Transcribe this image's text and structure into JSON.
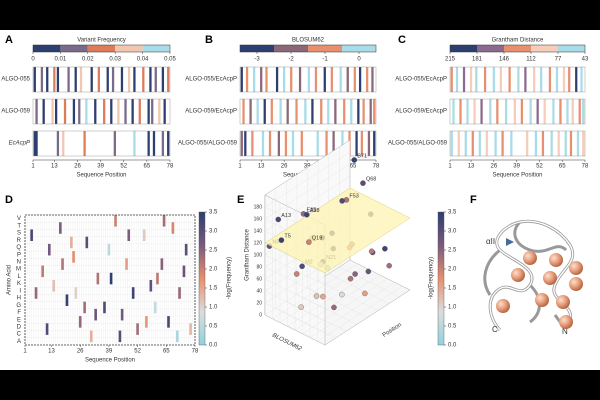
{
  "stripe_panels": [
    {
      "label": "A",
      "colorbar_title": "Variant Frequency",
      "colors": [
        "#2d3e70",
        "#7a6a8a",
        "#e07b5a",
        "#f2c7b0",
        "#a8dce8"
      ],
      "ticks": [
        0,
        0.01,
        0.02,
        0.03,
        0.04,
        0.05
      ],
      "x_label": "Sequence Position",
      "xlim": [
        1,
        78
      ],
      "xticks": [
        1,
        13,
        26,
        39,
        52,
        65,
        78
      ],
      "rows": [
        {
          "name": "ALGO-055",
          "stripes": [
            [
              2,
              0
            ],
            [
              6,
              1
            ],
            [
              9,
              0
            ],
            [
              13,
              2
            ],
            [
              15,
              0
            ],
            [
              21,
              1
            ],
            [
              25,
              0
            ],
            [
              28,
              3
            ],
            [
              34,
              0
            ],
            [
              38,
              2
            ],
            [
              43,
              0
            ],
            [
              46,
              1
            ],
            [
              51,
              0
            ],
            [
              55,
              3
            ],
            [
              58,
              0
            ],
            [
              63,
              2
            ],
            [
              67,
              0
            ],
            [
              70,
              1
            ],
            [
              74,
              0
            ],
            [
              77,
              2
            ]
          ]
        },
        {
          "name": "ALGO-059",
          "stripes": [
            [
              3,
              1
            ],
            [
              7,
              0
            ],
            [
              12,
              3
            ],
            [
              14,
              0
            ],
            [
              19,
              2
            ],
            [
              24,
              0
            ],
            [
              27,
              1
            ],
            [
              31,
              4
            ],
            [
              36,
              0
            ],
            [
              41,
              2
            ],
            [
              45,
              0
            ],
            [
              49,
              3
            ],
            [
              53,
              1
            ],
            [
              57,
              0
            ],
            [
              61,
              2
            ],
            [
              66,
              0
            ],
            [
              68,
              1
            ],
            [
              72,
              3
            ],
            [
              75,
              0
            ]
          ]
        },
        {
          "name": "EcAcpP",
          "stripes": [
            [
              2,
              0
            ],
            [
              3,
              0
            ],
            [
              15,
              1
            ],
            [
              18,
              3
            ],
            [
              30,
              2
            ],
            [
              47,
              1
            ],
            [
              58,
              4
            ],
            [
              66,
              0
            ],
            [
              69,
              0
            ],
            [
              74,
              1
            ],
            [
              77,
              0
            ]
          ]
        }
      ]
    },
    {
      "label": "B",
      "colorbar_title": "BLOSUM62",
      "colors": [
        "#2d3e70",
        "#8a6878",
        "#e8906e",
        "#a8dce8"
      ],
      "ticks": [
        -3,
        -2,
        -1,
        0
      ],
      "x_label": "Sequence Position",
      "xlim": [
        1,
        78
      ],
      "xticks": [
        1,
        13,
        26,
        39,
        52,
        65,
        78
      ],
      "rows": [
        {
          "name": "ALGO-055/EcAcpP",
          "stripes": [
            [
              2,
              0
            ],
            [
              5,
              2
            ],
            [
              9,
              3
            ],
            [
              13,
              1
            ],
            [
              16,
              2
            ],
            [
              22,
              0
            ],
            [
              26,
              3
            ],
            [
              30,
              2
            ],
            [
              35,
              1
            ],
            [
              40,
              3
            ],
            [
              44,
              2
            ],
            [
              49,
              0
            ],
            [
              53,
              2
            ],
            [
              58,
              3
            ],
            [
              62,
              1
            ],
            [
              66,
              2
            ],
            [
              69,
              0
            ],
            [
              73,
              2
            ],
            [
              76,
              1
            ]
          ]
        },
        {
          "name": "ALGO-059/EcAcpP",
          "stripes": [
            [
              3,
              2
            ],
            [
              7,
              1
            ],
            [
              11,
              3
            ],
            [
              15,
              0
            ],
            [
              19,
              2
            ],
            [
              24,
              3
            ],
            [
              28,
              1
            ],
            [
              33,
              2
            ],
            [
              38,
              3
            ],
            [
              42,
              0
            ],
            [
              47,
              2
            ],
            [
              51,
              3
            ],
            [
              55,
              1
            ],
            [
              60,
              2
            ],
            [
              64,
              3
            ],
            [
              68,
              0
            ],
            [
              71,
              2
            ],
            [
              75,
              1
            ],
            [
              77,
              2
            ]
          ]
        },
        {
          "name": "ALGO-055/ALGO-059",
          "stripes": [
            [
              2,
              1
            ],
            [
              4,
              0
            ],
            [
              8,
              2
            ],
            [
              14,
              3
            ],
            [
              18,
              2
            ],
            [
              23,
              1
            ],
            [
              27,
              2
            ],
            [
              31,
              3
            ],
            [
              36,
              2
            ],
            [
              45,
              3
            ],
            [
              50,
              2
            ],
            [
              54,
              1
            ],
            [
              59,
              3
            ],
            [
              63,
              2
            ],
            [
              67,
              0
            ],
            [
              70,
              2
            ],
            [
              74,
              1
            ],
            [
              77,
              0
            ]
          ]
        }
      ]
    },
    {
      "label": "C",
      "colorbar_title": "Grantham Distance",
      "colors": [
        "#2d3e70",
        "#8a6a8e",
        "#e8906e",
        "#f5cdb8",
        "#a8dce8"
      ],
      "ticks": [
        215,
        181,
        146,
        112,
        77,
        43
      ],
      "x_label": "Sequence Position",
      "xlim": [
        1,
        78
      ],
      "xticks": [
        1,
        13,
        26,
        39,
        52,
        65,
        78
      ],
      "rows": [
        {
          "name": "ALGO-055/EcAcpP",
          "stripes": [
            [
              2,
              2
            ],
            [
              5,
              4
            ],
            [
              9,
              1
            ],
            [
              13,
              3
            ],
            [
              16,
              4
            ],
            [
              21,
              2
            ],
            [
              26,
              4
            ],
            [
              30,
              3
            ],
            [
              35,
              2
            ],
            [
              40,
              4
            ],
            [
              44,
              1
            ],
            [
              49,
              3
            ],
            [
              53,
              4
            ],
            [
              58,
              2
            ],
            [
              62,
              4
            ],
            [
              66,
              3
            ],
            [
              69,
              2
            ],
            [
              73,
              0
            ],
            [
              76,
              4
            ]
          ]
        },
        {
          "name": "ALGO-059/EcAcpP",
          "stripes": [
            [
              3,
              4
            ],
            [
              7,
              2
            ],
            [
              11,
              4
            ],
            [
              15,
              3
            ],
            [
              19,
              1
            ],
            [
              24,
              4
            ],
            [
              28,
              2
            ],
            [
              33,
              4
            ],
            [
              38,
              3
            ],
            [
              42,
              2
            ],
            [
              47,
              4
            ],
            [
              51,
              1
            ],
            [
              55,
              3
            ],
            [
              60,
              4
            ],
            [
              64,
              2
            ],
            [
              68,
              4
            ],
            [
              71,
              3
            ],
            [
              75,
              2
            ],
            [
              77,
              4
            ]
          ]
        },
        {
          "name": "ALGO-055/ALGO-059",
          "stripes": [
            [
              2,
              4
            ],
            [
              6,
              3
            ],
            [
              10,
              4
            ],
            [
              14,
              2
            ],
            [
              18,
              4
            ],
            [
              22,
              3
            ],
            [
              27,
              4
            ],
            [
              31,
              2
            ],
            [
              36,
              4
            ],
            [
              45,
              3
            ],
            [
              50,
              4
            ],
            [
              54,
              2
            ],
            [
              59,
              4
            ],
            [
              63,
              3
            ],
            [
              67,
              4
            ],
            [
              70,
              2
            ],
            [
              74,
              4
            ],
            [
              77,
              3
            ]
          ]
        }
      ]
    }
  ],
  "heatmap": {
    "label": "D",
    "x_label": "Sequence Position",
    "y_label": "Amino Acid",
    "xlim": [
      1,
      78
    ],
    "xticks": [
      1,
      13,
      26,
      39,
      52,
      65,
      78
    ],
    "rows": [
      "V",
      "T",
      "S",
      "R",
      "Q",
      "P",
      "N",
      "M",
      "L",
      "K",
      "I",
      "H",
      "G",
      "F",
      "E",
      "D",
      "C",
      "A"
    ],
    "cells": [
      [
        4,
        2,
        3.2
      ],
      [
        9,
        7,
        2.1
      ],
      [
        14,
        9,
        1.2
      ],
      [
        17,
        1,
        2.6
      ],
      [
        20,
        11,
        3.4
      ],
      [
        23,
        5,
        1.8
      ],
      [
        26,
        14,
        2.4
      ],
      [
        29,
        3,
        3.0
      ],
      [
        31,
        16,
        1.4
      ],
      [
        34,
        8,
        2.2
      ],
      [
        37,
        12,
        3.1
      ],
      [
        39,
        4,
        0.5
      ],
      [
        42,
        0,
        2.0
      ],
      [
        45,
        13,
        2.7
      ],
      [
        47,
        6,
        1.6
      ],
      [
        50,
        10,
        3.3
      ],
      [
        52,
        15,
        2.3
      ],
      [
        55,
        2,
        1.1
      ],
      [
        58,
        9,
        2.9
      ],
      [
        60,
        12,
        0.6
      ],
      [
        63,
        6,
        2.5
      ],
      [
        66,
        14,
        3.2
      ],
      [
        68,
        1,
        1.9
      ],
      [
        71,
        10,
        2.4
      ],
      [
        74,
        4,
        3.0
      ],
      [
        76,
        15,
        1.3
      ],
      [
        6,
        10,
        2.4
      ],
      [
        11,
        15,
        3.1
      ],
      [
        18,
        6,
        2.2
      ],
      [
        24,
        10,
        1.0
      ],
      [
        33,
        13,
        2.8
      ],
      [
        40,
        8,
        3.5
      ],
      [
        48,
        2,
        2.6
      ],
      [
        56,
        14,
        1.7
      ],
      [
        64,
        0,
        2.3
      ],
      [
        70,
        16,
        0.3
      ],
      [
        12,
        4,
        2.7
      ],
      [
        28,
        12,
        2.3
      ],
      [
        44,
        16,
        3.0
      ],
      [
        61,
        8,
        2.1
      ],
      [
        73,
        7,
        2.8
      ],
      [
        22,
        3,
        1.4
      ]
    ],
    "colorbar_label": "-log(Frequency)",
    "colorbar_lim": [
      0,
      3.5
    ],
    "colorbar_ticks": [
      {
        "value": 0,
        "label": "0.0"
      },
      0.5,
      {
        "value": 1,
        "label": "1.0"
      },
      1.5,
      {
        "value": 2,
        "label": "2.0"
      },
      2.5,
      {
        "value": 3,
        "label": "3.0"
      },
      3.5
    ],
    "colors": [
      "#8fd3e0",
      "#dcdcdc",
      "#e8906e",
      "#7a5a7e",
      "#2d3e70"
    ]
  },
  "scatter3d": {
    "label": "E",
    "z_label": "Grantham Distance",
    "x_label": "Position",
    "y_label": "BLOSUM62",
    "xlim": [
      1,
      78
    ],
    "ylim": [
      -4,
      1
    ],
    "zlim": [
      0,
      200
    ],
    "zticks": [
      0,
      20,
      40,
      60,
      80,
      100,
      120,
      140,
      160,
      180
    ],
    "plane": 120,
    "points": [
      {
        "label": "B71",
        "x": 71,
        "y": -3,
        "z": 185,
        "v": 3.4
      },
      {
        "label": "E25",
        "x": 25,
        "y": -3,
        "z": 150,
        "v": 2.4
      },
      {
        "label": "F53",
        "x": 53,
        "y": -2,
        "z": 150,
        "v": 2.2
      },
      {
        "label": "Q68",
        "x": 68,
        "y": -2,
        "z": 160,
        "v": 3.0
      },
      {
        "label": "A13",
        "x": 13,
        "y": -4,
        "z": 145,
        "v": 3.2
      },
      {
        "label": "A28",
        "x": 28,
        "y": -3,
        "z": 145,
        "v": 3.3
      },
      {
        "label": "Q19",
        "x": 19,
        "y": -2,
        "z": 120,
        "v": 2.0
      },
      {
        "label": "T5",
        "x": 5,
        "y": -3,
        "z": 130,
        "v": 3.4
      },
      {
        "label": "M2",
        "x": 2,
        "y": -1,
        "z": 110,
        "v": 3.1
      },
      {
        "label": "N5",
        "x": 5,
        "y": -4,
        "z": 110,
        "v": 2.9
      },
      {
        "label": "N21",
        "x": 21,
        "y": -1,
        "z": 95,
        "v": 2.6
      },
      {
        "x": 40,
        "y": -2,
        "z": 110,
        "v": 2.8
      },
      {
        "x": 45,
        "y": -1,
        "z": 90,
        "v": 1.8
      },
      {
        "x": 60,
        "y": -3,
        "z": 130,
        "v": 3.1
      },
      {
        "x": 35,
        "y": 0,
        "z": 60,
        "v": 2.2
      },
      {
        "x": 10,
        "y": 0,
        "z": 60,
        "v": 1.5
      },
      {
        "x": 50,
        "y": -1,
        "z": 40,
        "v": 2.5
      },
      {
        "x": 55,
        "y": 0,
        "z": 80,
        "v": 3.0
      },
      {
        "x": 30,
        "y": -2,
        "z": 70,
        "v": 0.8
      },
      {
        "x": 65,
        "y": -1,
        "z": 60,
        "v": 2.1
      },
      {
        "x": 75,
        "y": -2,
        "z": 100,
        "v": 2.7
      },
      {
        "x": 15,
        "y": -1,
        "z": 45,
        "v": 1.2
      },
      {
        "x": 20,
        "y": 0,
        "z": 30,
        "v": 2.4
      },
      {
        "x": 42,
        "y": -3,
        "z": 90,
        "v": 3.2
      },
      {
        "x": 58,
        "y": -2,
        "z": 70,
        "v": 1.9
      },
      {
        "x": 70,
        "y": 0,
        "z": 40,
        "v": 2.3
      },
      {
        "x": 25,
        "y": -1,
        "z": 80,
        "v": 0.4
      },
      {
        "x": 48,
        "y": 0,
        "z": 20,
        "v": 1.6
      },
      {
        "x": 62,
        "y": -1,
        "z": 30,
        "v": 2.8
      },
      {
        "x": 8,
        "y": -2,
        "z": 80,
        "v": 2.0
      },
      {
        "x": 33,
        "y": -3,
        "z": 100,
        "v": 1.4
      },
      {
        "x": 77,
        "y": -1,
        "z": 50,
        "v": 3.3
      },
      {
        "x": 38,
        "y": -1,
        "z": 20,
        "v": 0.9
      },
      {
        "x": 52,
        "y": -3,
        "z": 60,
        "v": 2.6
      },
      {
        "x": 12,
        "y": -2,
        "z": 20,
        "v": 1.1
      }
    ],
    "colorbar_label": "-log(Frequency)",
    "colorbar_lim": [
      0,
      3.5
    ],
    "colorbar_ticks": [
      {
        "value": 0,
        "label": "0.0"
      },
      0.5,
      {
        "value": 1,
        "label": "1.0"
      },
      1.5,
      {
        "value": 2,
        "label": "2.0"
      },
      2.5,
      {
        "value": 3,
        "label": "3.0"
      },
      3.5
    ],
    "colors": [
      "#8fd3e0",
      "#dcdcdc",
      "#e8906e",
      "#7a5a7e",
      "#2d3e70"
    ]
  },
  "structure": {
    "label": "F",
    "helix": "αII",
    "c_term": "C",
    "n_term": "N"
  }
}
